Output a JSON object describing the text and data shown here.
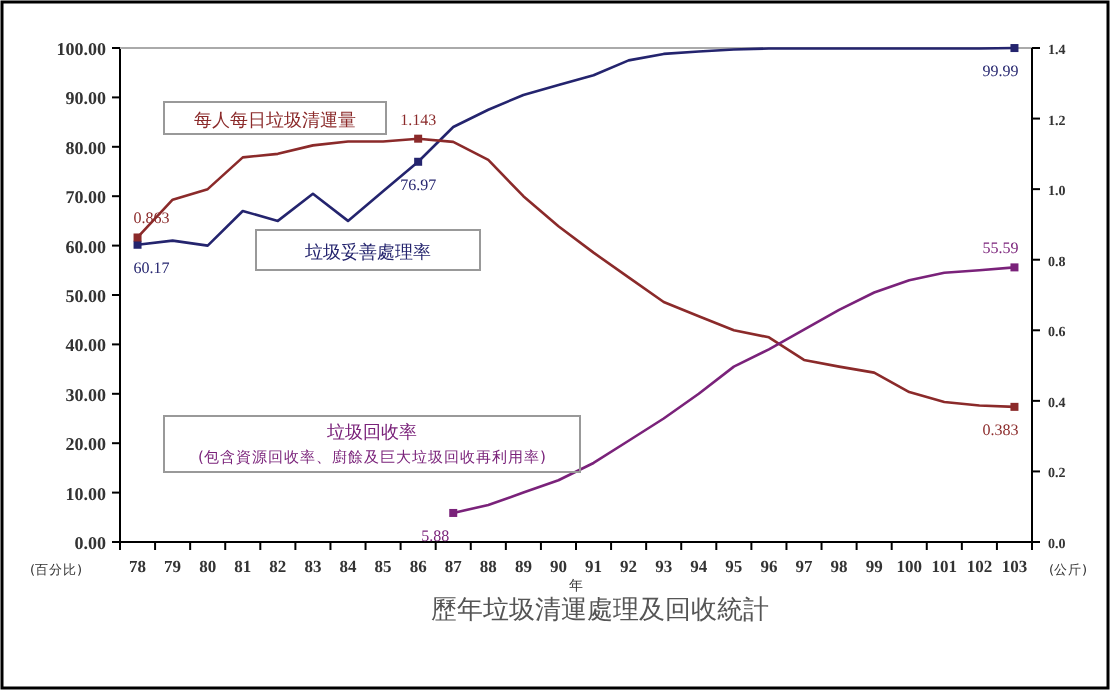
{
  "chart_data": {
    "type": "line",
    "title": "歷年垃圾清運處理及回收統計",
    "xlabel": "年",
    "ylabel": "(百分比)",
    "y2label": "(公斤)",
    "categories": [
      "78",
      "79",
      "80",
      "81",
      "82",
      "83",
      "84",
      "85",
      "86",
      "87",
      "88",
      "89",
      "90",
      "91",
      "92",
      "93",
      "94",
      "95",
      "96",
      "97",
      "98",
      "99",
      "100",
      "101",
      "102",
      "103"
    ],
    "ylim": [
      0,
      100
    ],
    "yticks": [
      {
        "value": 0,
        "label": "0.00"
      },
      {
        "value": 10,
        "label": "10.00"
      },
      {
        "value": 20,
        "label": "20.00"
      },
      {
        "value": 30,
        "label": "30.00"
      },
      {
        "value": 40,
        "label": "40.00"
      },
      {
        "value": 50,
        "label": "50.00"
      },
      {
        "value": 60,
        "label": "60.00"
      },
      {
        "value": 70,
        "label": "70.00"
      },
      {
        "value": 80,
        "label": "80.00"
      },
      {
        "value": 90,
        "label": "90.00"
      },
      {
        "value": 100,
        "label": "100.00"
      }
    ],
    "y2lim": [
      0,
      1.4
    ],
    "y2ticks": [
      {
        "value": 0,
        "label": "0.0"
      },
      {
        "value": 0.2,
        "label": "0.2"
      },
      {
        "value": 0.4,
        "label": "0.4"
      },
      {
        "value": 0.6,
        "label": "0.6"
      },
      {
        "value": 0.8,
        "label": "0.8"
      },
      {
        "value": 1,
        "label": "1.0"
      },
      {
        "value": 1.2,
        "label": "1.2"
      },
      {
        "value": 1.4,
        "label": "1.4"
      }
    ],
    "series": [
      {
        "name": "垃圾妥善處理率",
        "color": "#24246e",
        "values": [
          60.17,
          61,
          60,
          67,
          65,
          70.5,
          65,
          71,
          76.97,
          84,
          87.5,
          90.5,
          92.5,
          94.5,
          97.5,
          98.8,
          99.3,
          99.7,
          99.9,
          99.9,
          99.9,
          99.9,
          99.9,
          99.9,
          99.9,
          99.99
        ],
        "value_labels": [
          "60.17",
          null,
          null,
          null,
          null,
          null,
          null,
          null,
          "76.97",
          null,
          null,
          null,
          null,
          null,
          null,
          null,
          null,
          null,
          null,
          null,
          null,
          null,
          null,
          null,
          null,
          "99.99"
        ]
      },
      {
        "name": "每人每日垃圾清運量",
        "color": "#8b2a2a",
        "axis": "y2",
        "values": [
          0.863,
          0.97,
          1.0,
          1.09,
          1.1,
          1.124,
          1.135,
          1.135,
          1.143,
          1.134,
          1.083,
          0.98,
          0.895,
          0.82,
          0.75,
          0.68,
          0.64,
          0.6,
          0.58,
          0.516,
          0.497,
          0.48,
          0.425,
          0.397,
          0.387,
          0.383
        ],
        "value_labels": [
          "0.863",
          null,
          null,
          null,
          null,
          null,
          null,
          null,
          "1.143",
          null,
          null,
          null,
          null,
          null,
          null,
          null,
          null,
          null,
          null,
          null,
          null,
          null,
          null,
          null,
          null,
          "0.383"
        ]
      },
      {
        "name": "垃圾回收率",
        "color": "#7a227a",
        "values": [
          null,
          null,
          null,
          null,
          null,
          null,
          null,
          null,
          null,
          5.88,
          7.5,
          10,
          12.5,
          16,
          20.5,
          25,
          30,
          35.5,
          39,
          43,
          47,
          50.5,
          53,
          54.5,
          55,
          55.59
        ],
        "value_labels": [
          null,
          null,
          null,
          null,
          null,
          null,
          null,
          null,
          null,
          "5.88",
          null,
          null,
          null,
          null,
          null,
          null,
          null,
          null,
          null,
          null,
          null,
          null,
          null,
          null,
          null,
          "55.59"
        ]
      }
    ],
    "annotations": [
      "(包含資源回收率、廚餘及巨大垃圾回收再利用率)"
    ]
  }
}
